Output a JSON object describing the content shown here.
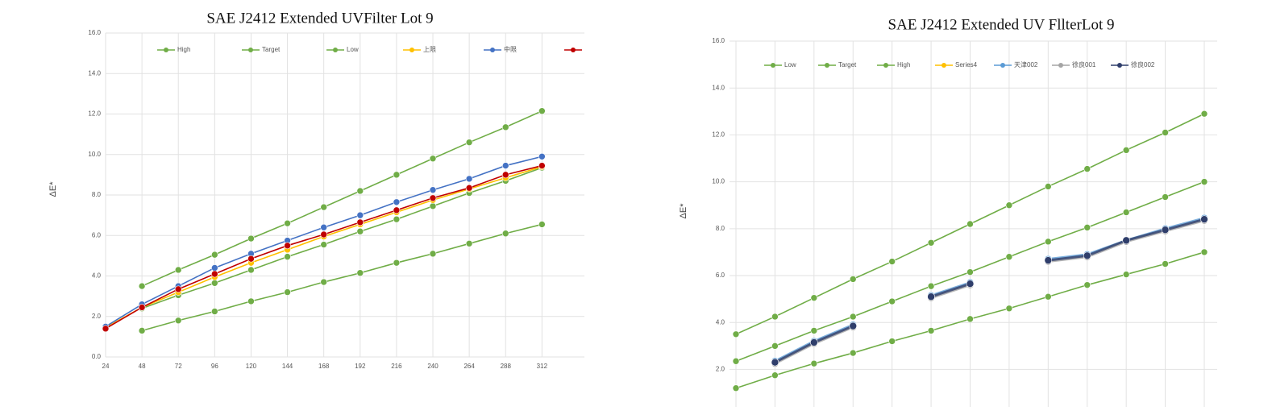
{
  "chart_data": [
    {
      "type": "line",
      "title": "SAE J2412 Extended UVFilter Lot 9",
      "y_label": "ΔE*",
      "x": [
        24,
        48,
        72,
        96,
        120,
        144,
        168,
        192,
        216,
        240,
        264,
        288,
        312
      ],
      "xlim": [
        24,
        340
      ],
      "xticks": [
        24,
        48,
        72,
        96,
        120,
        144,
        168,
        192,
        216,
        240,
        264,
        288,
        312
      ],
      "ylim": [
        0,
        16
      ],
      "yticks": [
        {
          "value": 0,
          "label": "0.0"
        },
        {
          "value": 2,
          "label": "2.0"
        },
        {
          "value": 4,
          "label": "4.0"
        },
        {
          "value": 6,
          "label": "6.0"
        },
        {
          "value": 8,
          "label": "8.0"
        },
        {
          "value": 10,
          "label": "10.0"
        },
        {
          "value": 12,
          "label": "12.0"
        },
        {
          "value": 14,
          "label": "14.0"
        },
        {
          "value": 16,
          "label": "16.0"
        }
      ],
      "grid": true,
      "legend": "top",
      "series": [
        {
          "name": "High",
          "color": "#70ad47",
          "values": [
            null,
            3.5,
            4.3,
            5.05,
            5.85,
            6.6,
            7.4,
            8.2,
            9.0,
            9.8,
            10.6,
            11.35,
            12.15
          ]
        },
        {
          "name": "Target",
          "color": "#70ad47",
          "values": [
            null,
            2.4,
            3.05,
            3.65,
            4.3,
            4.95,
            5.55,
            6.2,
            6.8,
            7.45,
            8.1,
            8.7,
            9.35
          ]
        },
        {
          "name": "Low",
          "color": "#70ad47",
          "values": [
            null,
            1.3,
            1.8,
            2.25,
            2.75,
            3.2,
            3.7,
            4.15,
            4.65,
            5.1,
            5.6,
            6.1,
            6.55
          ]
        },
        {
          "name": "上限",
          "color": "#ffc000",
          "values": [
            1.45,
            2.45,
            3.2,
            3.95,
            4.65,
            5.3,
            5.95,
            6.55,
            7.15,
            7.75,
            8.3,
            8.85,
            9.4
          ]
        },
        {
          "name": "中限",
          "color": "#4472c4",
          "values": [
            1.5,
            2.6,
            3.5,
            4.4,
            5.1,
            5.75,
            6.4,
            7.0,
            7.65,
            8.25,
            8.8,
            9.45,
            9.9
          ]
        },
        {
          "name": null,
          "color": "#c00000",
          "values": [
            1.4,
            2.45,
            3.35,
            4.1,
            4.85,
            5.5,
            6.05,
            6.65,
            7.25,
            7.85,
            8.35,
            9.0,
            9.45
          ]
        }
      ]
    },
    {
      "type": "line",
      "title": "SAE J2412 Extended UV FllterLot 9",
      "y_label": "ΔE*",
      "categories": [
        null,
        null,
        null,
        null,
        null,
        null,
        null,
        null,
        null,
        null,
        null,
        null,
        null
      ],
      "ylim": [
        0.4,
        16
      ],
      "yticks": [
        {
          "value": 2,
          "label": "2.0"
        },
        {
          "value": 4,
          "label": "4.0"
        },
        {
          "value": 6,
          "label": "6.0"
        },
        {
          "value": 8,
          "label": "8.0"
        },
        {
          "value": 10,
          "label": "10.0"
        },
        {
          "value": 12,
          "label": "12.0"
        },
        {
          "value": 14,
          "label": "14.0"
        },
        {
          "value": 16,
          "label": "16.0"
        }
      ],
      "grid": true,
      "legend": "top",
      "series": [
        {
          "name": "Low",
          "color": "#70ad47",
          "values": [
            1.2,
            1.75,
            2.25,
            2.7,
            3.2,
            3.65,
            4.15,
            4.6,
            5.1,
            5.6,
            6.05,
            6.5,
            7.0
          ]
        },
        {
          "name": "Target",
          "color": "#70ad47",
          "values": [
            2.35,
            3.0,
            3.65,
            4.25,
            4.9,
            5.55,
            6.15,
            6.8,
            7.45,
            8.05,
            8.7,
            9.35,
            10.0
          ]
        },
        {
          "name": "High",
          "color": "#70ad47",
          "values": [
            3.5,
            4.25,
            5.05,
            5.85,
            6.6,
            7.4,
            8.2,
            9.0,
            9.8,
            10.55,
            11.35,
            12.1,
            12.9
          ]
        },
        {
          "name": "Series4",
          "color": "#ffc000",
          "values": [
            null,
            null,
            null,
            null,
            null,
            null,
            null,
            null,
            null,
            null,
            null,
            null,
            null
          ]
        },
        {
          "name": "天津002",
          "color": "#5b9bd5",
          "values": [
            null,
            2.35,
            3.2,
            3.9,
            null,
            5.15,
            5.7,
            null,
            6.7,
            6.9,
            7.5,
            8.0,
            8.45
          ]
        },
        {
          "name": "徐良001",
          "color": "#a5a5a5",
          "values": [
            null,
            2.25,
            3.1,
            3.8,
            null,
            5.05,
            5.6,
            null,
            6.6,
            6.8,
            7.45,
            7.9,
            8.35
          ]
        },
        {
          "name": "徐良002",
          "color": "#2f3e6b",
          "values": [
            null,
            2.3,
            3.15,
            3.85,
            null,
            5.1,
            5.65,
            null,
            6.65,
            6.85,
            7.5,
            7.95,
            8.4
          ]
        }
      ]
    }
  ]
}
